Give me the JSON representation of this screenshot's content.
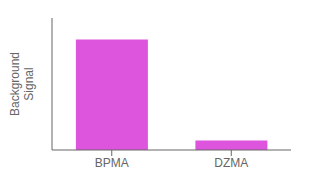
{
  "chart_data": {
    "type": "bar",
    "categories": [
      "BPMA",
      "DZMA"
    ],
    "values": [
      0.92,
      0.08
    ],
    "color": "#dd55dd",
    "ylabel": "Background\nSignal",
    "ylim": [
      0,
      1.1
    ],
    "tick_labels": "x"
  }
}
